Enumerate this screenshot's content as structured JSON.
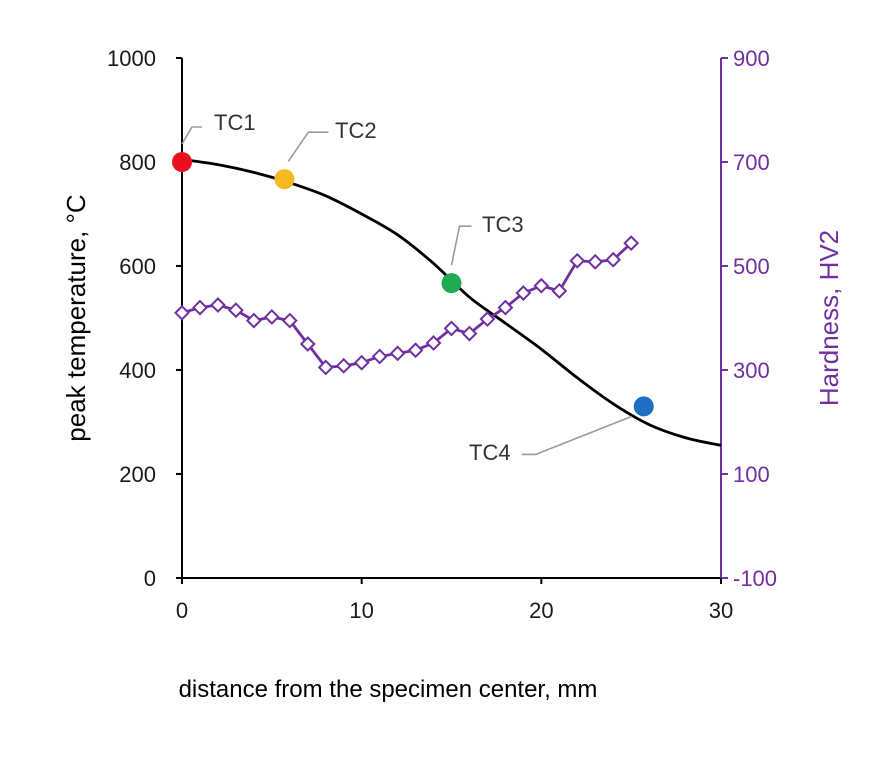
{
  "chart_data": {
    "type": "line",
    "title": "",
    "xlabel": "distance from the specimen center, mm",
    "ylabel": "peak temperature, °C",
    "y2label": "Hardness, HV2",
    "xlim": [
      0,
      30
    ],
    "ylim": [
      0,
      1000
    ],
    "y2lim": [
      -100,
      900
    ],
    "x_ticks": [
      "0",
      "10",
      "20",
      "30"
    ],
    "y_ticks": [
      "0",
      "200",
      "400",
      "600",
      "800",
      "1000"
    ],
    "y2_ticks": [
      "-100",
      "100",
      "300",
      "500",
      "700",
      "900"
    ],
    "grid": false,
    "colors": {
      "temperature_line": "#000000",
      "hardness": "#7030a0",
      "tc1": "#e8101e",
      "tc2": "#f5b921",
      "tc3": "#1faa4f",
      "tc4": "#1c6fc2",
      "leader": "#9a9a9a"
    },
    "series": [
      {
        "name": "peak temperature",
        "axis": "left",
        "style": "line",
        "x": [
          0,
          2,
          4,
          6,
          8,
          10,
          12,
          14,
          16,
          18,
          20,
          22,
          24,
          26,
          28,
          30
        ],
        "y": [
          805,
          795,
          780,
          760,
          735,
          700,
          660,
          605,
          540,
          490,
          440,
          385,
          335,
          295,
          270,
          255
        ]
      },
      {
        "name": "Hardness, HV2",
        "axis": "right",
        "style": "line-diamond",
        "x": [
          0,
          1,
          2,
          3,
          4,
          5,
          6,
          7,
          8,
          9,
          10,
          11,
          12,
          13,
          14,
          15,
          16,
          17,
          18,
          19,
          20,
          21,
          22,
          23,
          24,
          25
        ],
        "y": [
          410,
          420,
          425,
          415,
          395,
          402,
          395,
          350,
          305,
          308,
          314,
          326,
          332,
          338,
          352,
          380,
          370,
          398,
          420,
          448,
          462,
          452,
          510,
          508,
          512,
          544
        ]
      }
    ],
    "points": [
      {
        "label": "TC1",
        "x": 0,
        "y": 800,
        "color": "#e8101e"
      },
      {
        "label": "TC2",
        "x": 5.7,
        "y": 767,
        "color": "#f5b921"
      },
      {
        "label": "TC3",
        "x": 15,
        "y": 567,
        "color": "#1faa4f"
      },
      {
        "label": "TC4",
        "x": 25.7,
        "y": 330,
        "color": "#1c6fc2"
      }
    ]
  }
}
